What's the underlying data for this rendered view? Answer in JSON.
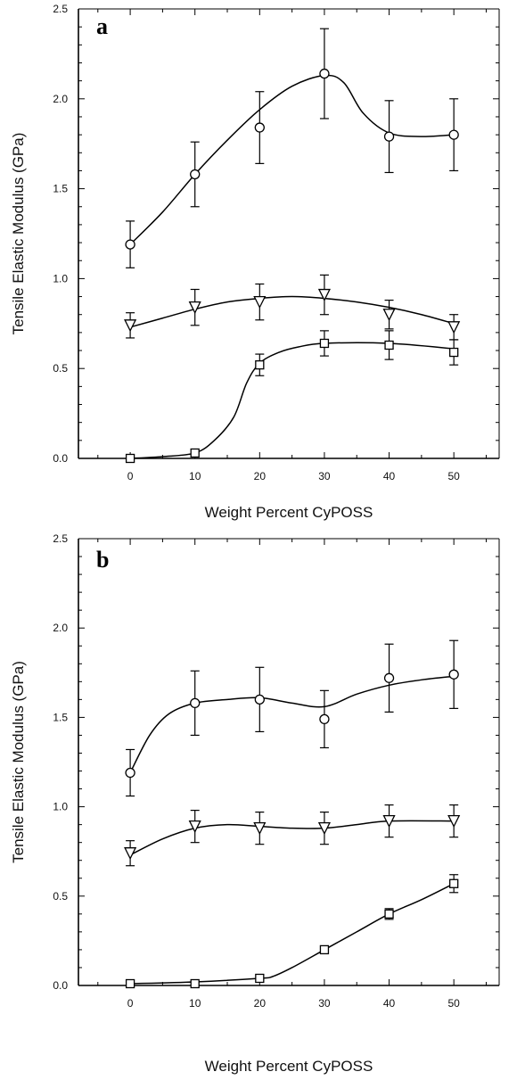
{
  "chart_data": [
    {
      "type": "line",
      "panel_label": "a",
      "xlabel": "Weight Percent CyPOSS",
      "ylabel": "Tensile Elastic Modulus (GPa)",
      "xlim": [
        -8,
        57
      ],
      "ylim": [
        0,
        2.5
      ],
      "x_ticks": [
        0,
        10,
        20,
        30,
        40,
        50
      ],
      "y_ticks": [
        0.0,
        0.5,
        1.0,
        1.5,
        2.0,
        2.5
      ],
      "x_tick_labels": [
        "0",
        "10",
        "20",
        "30",
        "40",
        "50"
      ],
      "y_tick_labels": [
        "0.0",
        "0.5",
        "1.0",
        "1.5",
        "2.0",
        "2.5"
      ],
      "grid": false,
      "legend": "none",
      "series": [
        {
          "marker": "circle",
          "x": [
            0,
            10,
            20,
            30,
            40,
            50
          ],
          "y": [
            1.19,
            1.58,
            1.84,
            2.14,
            1.79,
            1.8
          ],
          "error": [
            0.13,
            0.18,
            0.2,
            0.25,
            0.2,
            0.2
          ],
          "curve": [
            [
              0,
              1.19
            ],
            [
              5,
              1.37
            ],
            [
              10,
              1.58
            ],
            [
              15,
              1.77
            ],
            [
              20,
              1.94
            ],
            [
              25,
              2.07
            ],
            [
              30,
              2.13
            ],
            [
              33,
              2.09
            ],
            [
              36,
              1.92
            ],
            [
              40,
              1.81
            ],
            [
              45,
              1.79
            ],
            [
              50,
              1.8
            ]
          ]
        },
        {
          "marker": "triangle-down",
          "x": [
            0,
            10,
            20,
            30,
            40,
            50
          ],
          "y": [
            0.74,
            0.84,
            0.87,
            0.91,
            0.8,
            0.73
          ],
          "error": [
            0.07,
            0.1,
            0.1,
            0.11,
            0.08,
            0.07
          ],
          "curve": [
            [
              0,
              0.73
            ],
            [
              5,
              0.78
            ],
            [
              10,
              0.83
            ],
            [
              15,
              0.87
            ],
            [
              20,
              0.89
            ],
            [
              25,
              0.9
            ],
            [
              30,
              0.89
            ],
            [
              35,
              0.87
            ],
            [
              40,
              0.84
            ],
            [
              45,
              0.8
            ],
            [
              50,
              0.75
            ]
          ]
        },
        {
          "marker": "square",
          "x": [
            0,
            10,
            20,
            30,
            40,
            50
          ],
          "y": [
            0.0,
            0.03,
            0.52,
            0.64,
            0.63,
            0.59
          ],
          "error": [
            0.0,
            0.0,
            0.06,
            0.07,
            0.08,
            0.07
          ],
          "curve": [
            [
              0,
              0.0
            ],
            [
              5,
              0.01
            ],
            [
              10,
              0.03
            ],
            [
              13,
              0.1
            ],
            [
              16,
              0.23
            ],
            [
              18,
              0.42
            ],
            [
              20,
              0.53
            ],
            [
              23,
              0.59
            ],
            [
              26,
              0.62
            ],
            [
              30,
              0.64
            ],
            [
              40,
              0.64
            ],
            [
              50,
              0.61
            ]
          ]
        }
      ]
    },
    {
      "type": "line",
      "panel_label": "b",
      "xlabel": "Weight Percent CyPOSS",
      "ylabel": "Tensile Elastic Modulus (GPa)",
      "xlim": [
        -8,
        57
      ],
      "ylim": [
        0,
        2.5
      ],
      "x_ticks": [
        0,
        10,
        20,
        30,
        40,
        50
      ],
      "y_ticks": [
        0.0,
        0.5,
        1.0,
        1.5,
        2.0,
        2.5
      ],
      "x_tick_labels": [
        "0",
        "10",
        "20",
        "30",
        "40",
        "50"
      ],
      "y_tick_labels": [
        "0.0",
        "0.5",
        "1.0",
        "1.5",
        "2.0",
        "2.5"
      ],
      "grid": false,
      "legend": "none",
      "series": [
        {
          "marker": "circle",
          "x": [
            0,
            10,
            20,
            30,
            40,
            50
          ],
          "y": [
            1.19,
            1.58,
            1.6,
            1.49,
            1.72,
            1.74
          ],
          "error": [
            0.13,
            0.18,
            0.18,
            0.16,
            0.19,
            0.19
          ],
          "curve": [
            [
              0,
              1.19
            ],
            [
              3,
              1.4
            ],
            [
              6,
              1.52
            ],
            [
              10,
              1.58
            ],
            [
              15,
              1.6
            ],
            [
              20,
              1.61
            ],
            [
              25,
              1.58
            ],
            [
              30,
              1.56
            ],
            [
              35,
              1.63
            ],
            [
              40,
              1.68
            ],
            [
              45,
              1.71
            ],
            [
              50,
              1.73
            ]
          ]
        },
        {
          "marker": "triangle-down",
          "x": [
            0,
            10,
            20,
            30,
            40,
            50
          ],
          "y": [
            0.74,
            0.89,
            0.88,
            0.88,
            0.92,
            0.92
          ],
          "error": [
            0.07,
            0.09,
            0.09,
            0.09,
            0.09,
            0.09
          ],
          "curve": [
            [
              0,
              0.73
            ],
            [
              5,
              0.82
            ],
            [
              10,
              0.88
            ],
            [
              15,
              0.9
            ],
            [
              20,
              0.89
            ],
            [
              25,
              0.88
            ],
            [
              30,
              0.88
            ],
            [
              35,
              0.9
            ],
            [
              40,
              0.92
            ],
            [
              50,
              0.92
            ]
          ]
        },
        {
          "marker": "square",
          "x": [
            0,
            10,
            20,
            30,
            40,
            50
          ],
          "y": [
            0.01,
            0.01,
            0.04,
            0.2,
            0.4,
            0.57
          ],
          "error": [
            0.0,
            0.0,
            0.0,
            0.0,
            0.03,
            0.05
          ],
          "curve": [
            [
              0,
              0.01
            ],
            [
              10,
              0.02
            ],
            [
              20,
              0.04
            ],
            [
              22,
              0.05
            ],
            [
              25,
              0.1
            ],
            [
              30,
              0.2
            ],
            [
              35,
              0.3
            ],
            [
              40,
              0.4
            ],
            [
              45,
              0.48
            ],
            [
              50,
              0.57
            ]
          ]
        }
      ]
    }
  ]
}
